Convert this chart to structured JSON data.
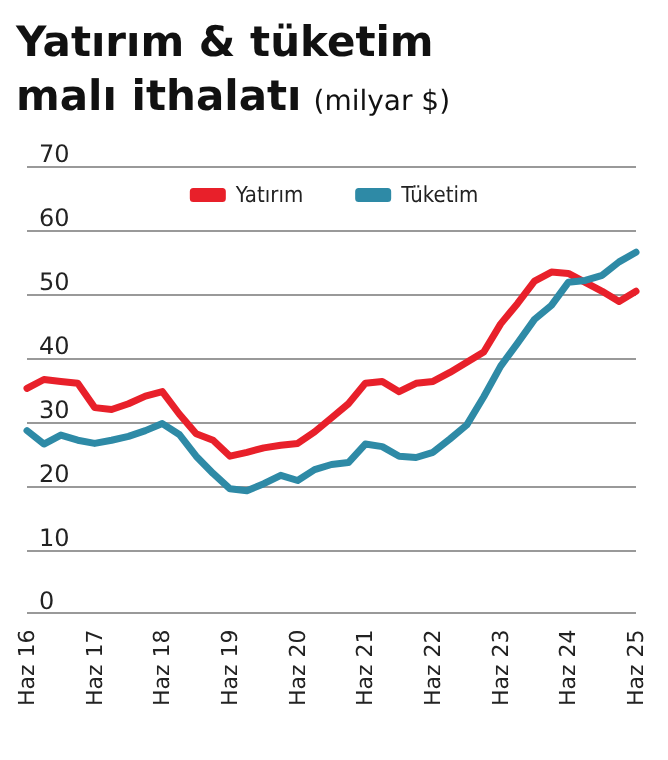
{
  "chart_data": {
    "type": "line",
    "title": "Yatırım & tüketim\nmalı ithalatı",
    "subtitle": "(milyar $)",
    "categories": [
      "Haz 16",
      null,
      null,
      null,
      "Haz 17",
      null,
      null,
      null,
      "Haz 18",
      null,
      null,
      null,
      "Haz 19",
      null,
      null,
      null,
      "Haz 20",
      null,
      null,
      null,
      "Haz 21",
      null,
      null,
      null,
      "Haz 22",
      null,
      null,
      null,
      "Haz 23",
      null,
      null,
      null,
      "Haz 24",
      null,
      null,
      null,
      "Haz 25"
    ],
    "series": [
      {
        "name": "Yatırım",
        "color": "#e8202a",
        "values": [
          35.2,
          36.6,
          36.3,
          36,
          32.2,
          31.9,
          32.8,
          34,
          34.7,
          31.2,
          28.1,
          27.1,
          24.6,
          25.2,
          25.9,
          26.3,
          26.6,
          28.4,
          30.6,
          32.8,
          36,
          36.3,
          34.7,
          36,
          36.3,
          37.7,
          39.3,
          40.9,
          45.3,
          48.5,
          52,
          53.4,
          53.2,
          51.8,
          50.4,
          48.8,
          50.4
        ]
      },
      {
        "name": "Tüketim",
        "color": "#2e8aa6",
        "values": [
          28.6,
          26.5,
          27.9,
          27.1,
          26.6,
          27.1,
          27.7,
          28.6,
          29.7,
          28,
          24.6,
          21.9,
          19.5,
          19.2,
          20.3,
          21.6,
          20.8,
          22.5,
          23.3,
          23.6,
          26.5,
          26.1,
          24.6,
          24.4,
          25.2,
          27.3,
          29.5,
          33.9,
          38.7,
          42.3,
          46,
          48.2,
          51.8,
          52.1,
          52.9,
          55,
          56.5
        ]
      }
    ],
    "ylim": [
      0,
      70
    ],
    "yticks": [
      0,
      10,
      20,
      30,
      40,
      50,
      60,
      70
    ],
    "grid": "y",
    "legend": "top",
    "marker": "none",
    "line_style": "solid"
  }
}
